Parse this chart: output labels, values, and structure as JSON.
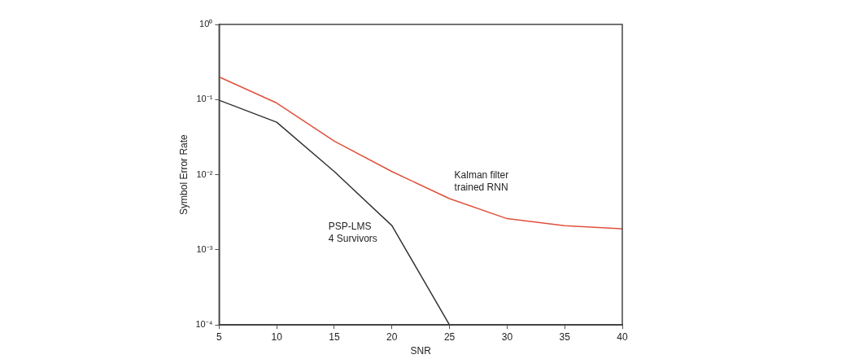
{
  "chart_data": {
    "type": "line",
    "xlabel": "SNR",
    "ylabel": "Symbol Error Rate",
    "x": [
      5,
      10,
      15,
      20,
      25,
      30,
      35,
      40
    ],
    "series": [
      {
        "name": "Kalman filter\ntrained RNN",
        "color": "#e0503c",
        "values": [
          0.2,
          0.09,
          0.028,
          0.011,
          0.0048,
          0.0026,
          0.0021,
          0.0019
        ]
      },
      {
        "name": "PSP-LMS\n4 Survivors",
        "color": "#333333",
        "values": [
          0.098,
          0.05,
          0.011,
          0.0021,
          0.0001,
          null,
          null,
          null
        ]
      }
    ],
    "log": "y",
    "xlim": [
      5,
      40
    ],
    "xticks": [
      5,
      10,
      15,
      20,
      25,
      30,
      35,
      40
    ],
    "ylim": [
      0.0001,
      1
    ],
    "yticks": [
      {
        "value": 0.0001,
        "label": "10⁻⁴"
      },
      {
        "value": 0.001,
        "label": "10⁻³"
      },
      {
        "value": 0.01,
        "label": "10⁻²"
      },
      {
        "value": 0.1,
        "label": "10⁻¹"
      },
      {
        "value": 1,
        "label": "10⁰"
      }
    ],
    "grid": false,
    "legend": false,
    "marker": "none",
    "line_style": "solid"
  }
}
